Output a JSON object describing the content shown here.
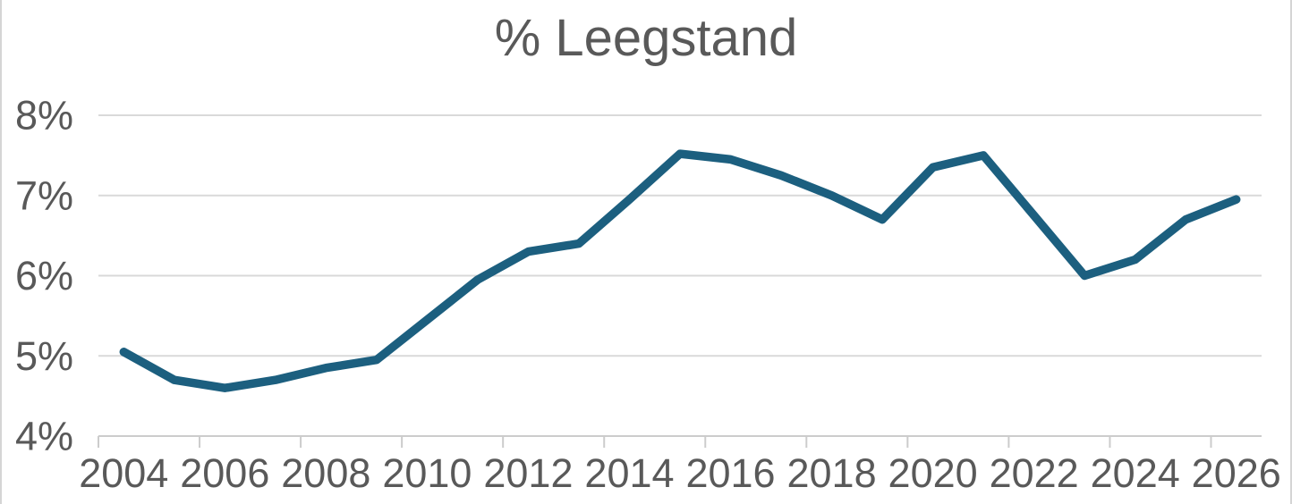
{
  "chart": {
    "title": "% Leegstand"
  },
  "chart_data": {
    "type": "line",
    "title": "% Leegstand",
    "xlabel": "",
    "ylabel": "",
    "x": [
      2004,
      2005,
      2006,
      2007,
      2008,
      2009,
      2010,
      2011,
      2012,
      2013,
      2014,
      2015,
      2016,
      2017,
      2018,
      2019,
      2020,
      2021,
      2022,
      2023,
      2024,
      2025,
      2026
    ],
    "values": [
      5.05,
      4.7,
      4.6,
      4.7,
      4.85,
      4.95,
      5.45,
      5.95,
      6.3,
      6.4,
      6.95,
      7.52,
      7.45,
      7.25,
      7.0,
      6.7,
      7.35,
      7.5,
      6.75,
      6.0,
      6.2,
      6.7,
      6.95
    ],
    "ylim": [
      4,
      8
    ],
    "yticks": [
      4,
      5,
      6,
      7,
      8
    ],
    "ytick_labels": [
      "4%",
      "5%",
      "6%",
      "7%",
      "8%"
    ],
    "xticks": [
      2004,
      2006,
      2008,
      2010,
      2012,
      2014,
      2016,
      2018,
      2020,
      2022,
      2024,
      2026
    ],
    "xtick_labels": [
      "2004",
      "2006",
      "2008",
      "2010",
      "2012",
      "2014",
      "2016",
      "2018",
      "2020",
      "2022",
      "2024",
      "2026"
    ],
    "grid": true,
    "legend_position": "none",
    "line_color": "#1c5f7f"
  },
  "colors": {
    "line": "#1c5f7f",
    "title_text": "#595959",
    "axis_text": "#595959",
    "gridline": "#d9d9d9",
    "axis_line": "#cccccc",
    "background": "#ffffff",
    "frame_border": "#d5d5d5"
  }
}
